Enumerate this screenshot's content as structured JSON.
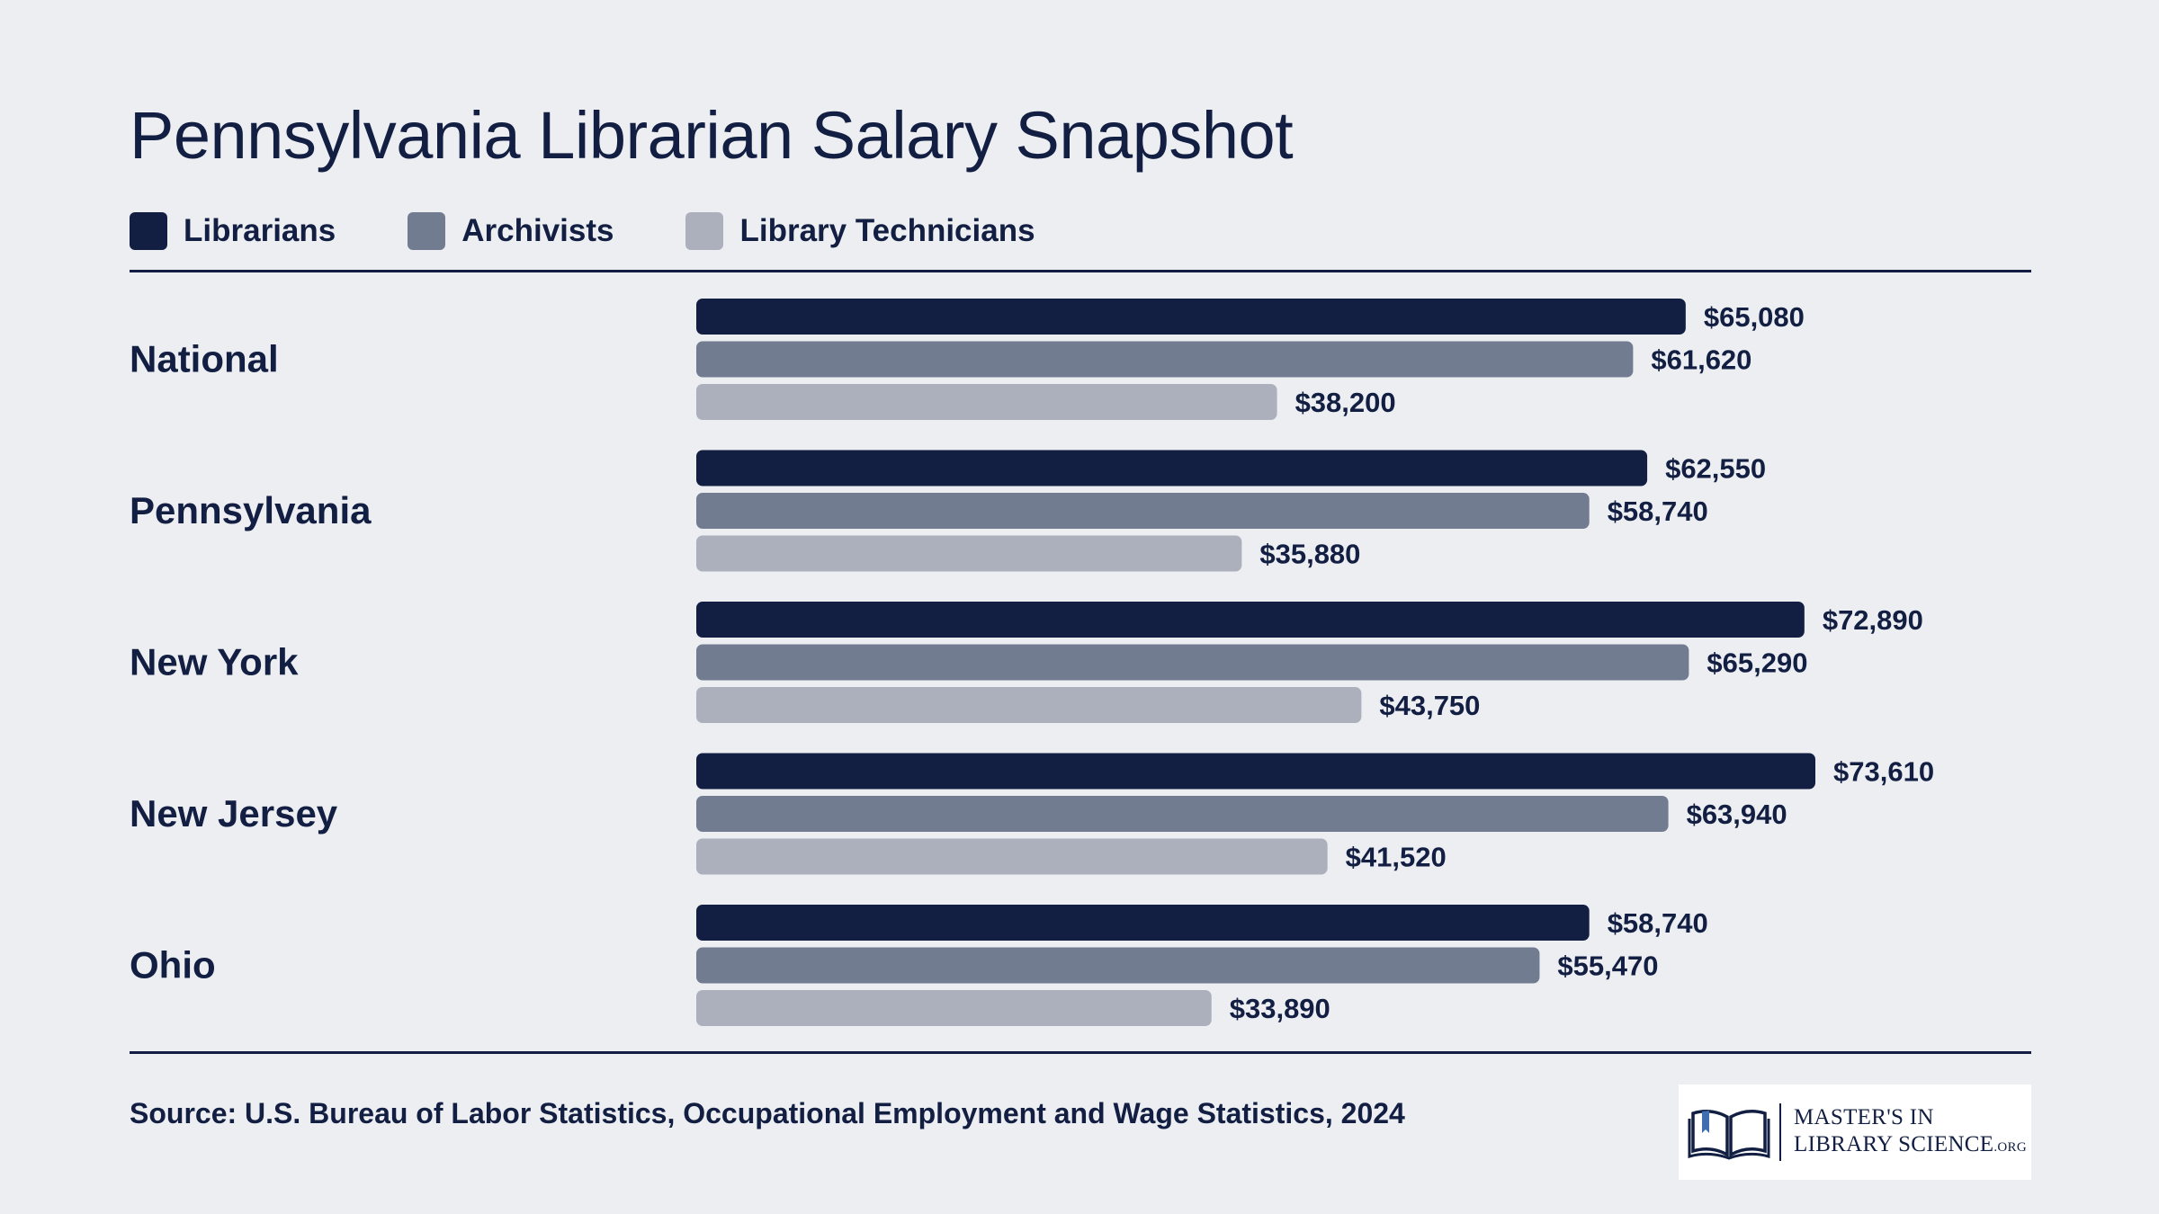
{
  "title": "Pennsylvania Librarian Salary Snapshot",
  "legend": [
    {
      "label": "Librarians",
      "color": "#121f42"
    },
    {
      "label": "Archivists",
      "color": "#727c91"
    },
    {
      "label": "Library Technicians",
      "color": "#abb0bc"
    }
  ],
  "source": "Source: U.S. Bureau of Labor Statistics, Occupational Employment and Wage Statistics, 2024",
  "logo": {
    "line1": "MASTER'S IN",
    "line2": "LIBRARY SCIENCE",
    "suffix": ".ORG"
  },
  "chart_data": {
    "type": "bar",
    "orientation": "horizontal",
    "title": "Pennsylvania Librarian Salary Snapshot",
    "categories": [
      "National",
      "Pennsylvania",
      "New York",
      "New Jersey",
      "Ohio"
    ],
    "series": [
      {
        "name": "Librarians",
        "color": "#121f42",
        "values": [
          65080,
          62550,
          72890,
          73610,
          58740
        ],
        "labels": [
          "$65,080",
          "$62,550",
          "$72,890",
          "$73,610",
          "$58,740"
        ]
      },
      {
        "name": "Archivists",
        "color": "#727c91",
        "values": [
          61620,
          58740,
          65290,
          63940,
          55470
        ],
        "labels": [
          "$61,620",
          "$58,740",
          "$65,290",
          "$63,940",
          "$55,470"
        ]
      },
      {
        "name": "Library Technicians",
        "color": "#abb0bc",
        "values": [
          38200,
          35880,
          43750,
          41520,
          33890
        ],
        "labels": [
          "$38,200",
          "$35,880",
          "$43,750",
          "$41,520",
          "$33,890"
        ]
      }
    ],
    "xlim": [
      0,
      73610
    ],
    "grid": false,
    "legend_position": "top-left"
  }
}
